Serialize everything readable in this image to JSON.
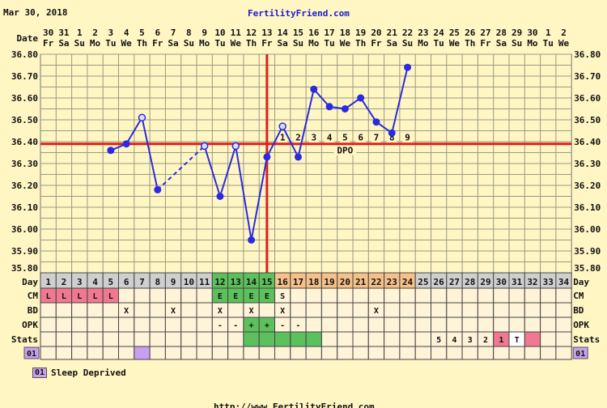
{
  "header": {
    "date": "Mar 30, 2018",
    "site": "FertilityFriend.com"
  },
  "footer": {
    "url": "http://www.FertilityFriend.com"
  },
  "legend": {
    "code": "01",
    "label": "Sleep Deprived"
  },
  "colors": {
    "background": "#fff6c4",
    "line": "#2a2ae0",
    "coverline": "#e02020",
    "fertile": "#5cc15c",
    "luteal": "#f5c08a",
    "menses": "#f07890",
    "sleep": "#c8a0f0",
    "gray": "#cfcfcf"
  },
  "chart_data": {
    "type": "line",
    "ylim": [
      35.8,
      36.8
    ],
    "y_ticks": [
      "36.80",
      "36.70",
      "36.60",
      "36.50",
      "36.40",
      "36.30",
      "36.20",
      "36.10",
      "36.00",
      "35.90",
      "35.80"
    ],
    "row_labels": {
      "date": "Date",
      "day": "Day",
      "cm": "CM",
      "bd": "BD",
      "opk": "OPK",
      "stats": "Stats",
      "note": "01"
    },
    "dates": [
      "30",
      "31",
      "1",
      "2",
      "3",
      "4",
      "5",
      "6",
      "7",
      "8",
      "9",
      "10",
      "11",
      "12",
      "13",
      "14",
      "15",
      "16",
      "17",
      "18",
      "19",
      "20",
      "21",
      "22",
      "23",
      "24",
      "25",
      "26",
      "27",
      "28",
      "29",
      "30",
      "1",
      "2"
    ],
    "weekdays": [
      "Fr",
      "Sa",
      "Su",
      "Mo",
      "Tu",
      "We",
      "Th",
      "Fr",
      "Sa",
      "Su",
      "Mo",
      "Tu",
      "We",
      "Th",
      "Fr",
      "Sa",
      "Su",
      "Mo",
      "Tu",
      "We",
      "Th",
      "Fr",
      "Sa",
      "Su",
      "Mo",
      "Tu",
      "We",
      "Th",
      "Fr",
      "Sa",
      "Su",
      "Mo",
      "Tu",
      "We"
    ],
    "days": [
      1,
      2,
      3,
      4,
      5,
      6,
      7,
      8,
      9,
      10,
      11,
      12,
      13,
      14,
      15,
      16,
      17,
      18,
      19,
      20,
      21,
      22,
      23,
      24,
      25,
      26,
      27,
      28,
      29,
      30,
      31,
      32,
      33,
      34
    ],
    "temperatures": [
      null,
      null,
      null,
      null,
      36.36,
      36.39,
      36.51,
      36.18,
      null,
      null,
      36.38,
      36.15,
      36.38,
      35.95,
      36.33,
      36.47,
      36.33,
      36.64,
      36.56,
      36.55,
      36.6,
      36.49,
      36.44,
      36.74,
      null,
      null,
      null,
      null,
      null,
      null,
      null,
      null,
      null,
      null
    ],
    "open_points": [
      7,
      11,
      13,
      16
    ],
    "coverline": 36.39,
    "ovulation_day": 15,
    "dpo_label": "DPO",
    "dpo": [
      "1",
      "2",
      "3",
      "4",
      "5",
      "6",
      "7",
      "8",
      "9"
    ],
    "day_colors": [
      "gray",
      "gray",
      "gray",
      "gray",
      "gray",
      "gray",
      "gray",
      "gray",
      "gray",
      "gray",
      "gray",
      "fertile",
      "fertile",
      "fertile",
      "fertile",
      "luteal",
      "luteal",
      "luteal",
      "luteal",
      "luteal",
      "luteal",
      "luteal",
      "luteal",
      "luteal",
      "gray",
      "gray",
      "gray",
      "gray",
      "gray",
      "gray",
      "gray",
      "gray",
      "gray",
      "gray"
    ],
    "cm": [
      "L",
      "L",
      "L",
      "L",
      "L",
      "",
      "",
      "",
      "",
      "",
      "",
      "E",
      "E",
      "E",
      "E",
      "S",
      "",
      "",
      "",
      "",
      "",
      "",
      "",
      "",
      "",
      "",
      "",
      "",
      "",
      "",
      "",
      "",
      "",
      ""
    ],
    "bd": [
      "",
      "",
      "",
      "",
      "",
      "X",
      "",
      "",
      "X",
      "",
      "",
      "X",
      "",
      "X",
      "",
      "X",
      "",
      "",
      "",
      "",
      "",
      "X",
      "",
      "",
      "",
      "",
      "",
      "",
      "",
      "",
      "",
      "",
      "",
      ""
    ],
    "opk": [
      "",
      "",
      "",
      "",
      "",
      "",
      "",
      "",
      "",
      "",
      "",
      "-",
      "-",
      "+",
      "+",
      "-",
      "-",
      "",
      "",
      "",
      "",
      "",
      "",
      "",
      "",
      "",
      "",
      "",
      "",
      "",
      "",
      "",
      "",
      ""
    ],
    "stats": [
      "",
      "",
      "",
      "",
      "",
      "",
      "",
      "",
      "",
      "",
      "",
      "",
      "",
      "",
      "",
      "",
      "",
      "",
      "",
      "",
      "",
      "",
      "",
      "",
      "",
      "5",
      "4",
      "3",
      "2",
      "1",
      "T",
      "",
      "",
      ""
    ],
    "stats_fertile_days": [
      14,
      15,
      16,
      17,
      18
    ],
    "stats_pink_days": [
      30,
      32
    ],
    "stats_white_days": [
      31
    ],
    "sleep_deprived_days": [
      7
    ]
  }
}
